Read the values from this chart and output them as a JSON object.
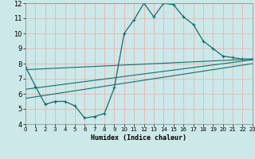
{
  "title": "",
  "xlabel": "Humidex (Indice chaleur)",
  "xlim": [
    0,
    23
  ],
  "ylim": [
    4,
    12
  ],
  "xticks": [
    0,
    1,
    2,
    3,
    4,
    5,
    6,
    7,
    8,
    9,
    10,
    11,
    12,
    13,
    14,
    15,
    16,
    17,
    18,
    19,
    20,
    21,
    22,
    23
  ],
  "yticks": [
    4,
    5,
    6,
    7,
    8,
    9,
    10,
    11,
    12
  ],
  "line_color": "#1a6b6b",
  "bg_color": "#cce8e8",
  "grid_color": "#e8b4b4",
  "main_x": [
    0,
    1,
    2,
    3,
    4,
    5,
    6,
    7,
    8,
    9,
    10,
    11,
    12,
    13,
    14,
    15,
    16,
    17,
    18,
    19,
    20,
    21,
    22,
    23
  ],
  "main_y": [
    7.8,
    6.5,
    5.3,
    5.5,
    5.5,
    5.2,
    4.4,
    4.5,
    4.7,
    6.4,
    10.0,
    10.9,
    12.0,
    11.1,
    12.0,
    11.9,
    11.1,
    10.6,
    9.5,
    9.0,
    8.5,
    8.4,
    8.3,
    8.3
  ],
  "line2_x": [
    0,
    23
  ],
  "line2_y": [
    7.6,
    8.3
  ],
  "line3_x": [
    0,
    23
  ],
  "line3_y": [
    6.3,
    8.25
  ],
  "line4_x": [
    0,
    23
  ],
  "line4_y": [
    5.7,
    8.0
  ]
}
